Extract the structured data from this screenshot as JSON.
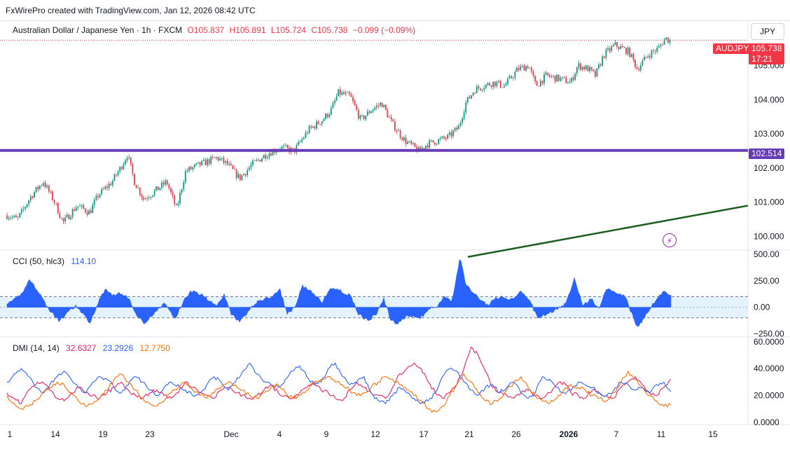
{
  "header": {
    "watermark": "FxWirePro created with TradingView.com, Jan 12, 2026 08:42 UTC"
  },
  "symbol": {
    "name": "Australian Dollar / Japanese Yen · 1h · FXCM",
    "open": "O105.837",
    "high": "H105.891",
    "low": "L105.724",
    "close": "C105.738",
    "change": "−0.099 (−0.09%)",
    "currency": "JPY",
    "ticker_tag": "AUDJPY",
    "last_price": "105.738",
    "countdown": "17:21",
    "level_tag": "102.514"
  },
  "colors": {
    "up": "#089981",
    "down": "#f23645",
    "hline": "#673ab7",
    "trendline": "#1b5e20",
    "cci": "#2962ff",
    "dmi_plus": "#e91e63",
    "dmi_minus": "#2962ff",
    "adx": "#ff6d00"
  },
  "icons": [
    "lightning-icon"
  ],
  "chart_data": [
    {
      "type": "candlestick",
      "title": "Australian Dollar / Japanese Yen · 1h · FXCM",
      "y_ticks": [
        "105.000",
        "104.000",
        "103.000",
        "102.000",
        "101.000",
        "100.000"
      ],
      "ylim": [
        99.6,
        106.3
      ],
      "x_tick_labels": [
        "1",
        "14",
        "19",
        "23",
        "Dec",
        "4",
        "9",
        "12",
        "17",
        "21",
        "26",
        "2026",
        "7",
        "11",
        "15"
      ],
      "path_anchors": [
        [
          0,
          100.7
        ],
        [
          25,
          100.5
        ],
        [
          45,
          101.2
        ],
        [
          62,
          101.6
        ],
        [
          78,
          101.0
        ],
        [
          90,
          100.4
        ],
        [
          110,
          100.9
        ],
        [
          128,
          100.7
        ],
        [
          140,
          101.2
        ],
        [
          160,
          101.6
        ],
        [
          172,
          102.0
        ],
        [
          182,
          102.4
        ],
        [
          192,
          101.6
        ],
        [
          205,
          101.1
        ],
        [
          220,
          101.3
        ],
        [
          238,
          101.6
        ],
        [
          252,
          100.8
        ],
        [
          265,
          101.9
        ],
        [
          285,
          102.1
        ],
        [
          310,
          102.3
        ],
        [
          325,
          102.1
        ],
        [
          342,
          101.7
        ],
        [
          360,
          102.1
        ],
        [
          380,
          102.4
        ],
        [
          400,
          102.6
        ],
        [
          420,
          102.5
        ],
        [
          440,
          103.1
        ],
        [
          460,
          103.4
        ],
        [
          473,
          103.7
        ],
        [
          483,
          104.2
        ],
        [
          500,
          104.1
        ],
        [
          515,
          103.4
        ],
        [
          530,
          103.7
        ],
        [
          545,
          103.9
        ],
        [
          560,
          103.3
        ],
        [
          578,
          102.8
        ],
        [
          598,
          102.5
        ],
        [
          610,
          102.7
        ],
        [
          625,
          102.8
        ],
        [
          640,
          102.9
        ],
        [
          655,
          103.2
        ],
        [
          665,
          103.9
        ],
        [
          678,
          104.3
        ],
        [
          690,
          104.4
        ],
        [
          705,
          104.5
        ],
        [
          720,
          104.4
        ],
        [
          740,
          104.9
        ],
        [
          755,
          105.0
        ],
        [
          765,
          104.4
        ],
        [
          780,
          104.7
        ],
        [
          800,
          104.6
        ],
        [
          815,
          104.5
        ],
        [
          825,
          105.0
        ],
        [
          840,
          104.9
        ],
        [
          850,
          104.7
        ],
        [
          862,
          105.3
        ],
        [
          878,
          105.6
        ],
        [
          888,
          105.5
        ],
        [
          898,
          105.4
        ],
        [
          910,
          104.9
        ],
        [
          925,
          105.3
        ],
        [
          940,
          105.5
        ],
        [
          950,
          105.8
        ],
        [
          958,
          105.7
        ]
      ],
      "horizontal_line": 102.514,
      "last_price": 105.738,
      "trendline": {
        "from": [
          668,
          99.4
        ],
        "to": [
          1068,
          100.9
        ]
      }
    },
    {
      "type": "area",
      "title": "CCI (50, hlc3)",
      "value": "114.10",
      "y_ticks": [
        "500.00",
        "250.00",
        "0.00",
        "−250.00"
      ],
      "ylim": [
        -260,
        520
      ],
      "band": [
        -100,
        100
      ],
      "path_anchors": [
        [
          0,
          50
        ],
        [
          15,
          40
        ],
        [
          30,
          120
        ],
        [
          42,
          260
        ],
        [
          55,
          150
        ],
        [
          65,
          30
        ],
        [
          72,
          -40
        ],
        [
          85,
          -130
        ],
        [
          95,
          -60
        ],
        [
          108,
          10
        ],
        [
          118,
          -60
        ],
        [
          128,
          -150
        ],
        [
          140,
          40
        ],
        [
          150,
          170
        ],
        [
          160,
          120
        ],
        [
          172,
          130
        ],
        [
          183,
          90
        ],
        [
          192,
          -40
        ],
        [
          205,
          -150
        ],
        [
          220,
          -60
        ],
        [
          235,
          40
        ],
        [
          250,
          -110
        ],
        [
          262,
          60
        ],
        [
          272,
          150
        ],
        [
          290,
          120
        ],
        [
          300,
          50
        ],
        [
          310,
          30
        ],
        [
          320,
          120
        ],
        [
          330,
          -60
        ],
        [
          342,
          -140
        ],
        [
          355,
          -40
        ],
        [
          368,
          60
        ],
        [
          385,
          90
        ],
        [
          400,
          160
        ],
        [
          410,
          -60
        ],
        [
          420,
          -10
        ],
        [
          432,
          200
        ],
        [
          445,
          140
        ],
        [
          460,
          50
        ],
        [
          472,
          180
        ],
        [
          485,
          160
        ],
        [
          500,
          110
        ],
        [
          512,
          -60
        ],
        [
          525,
          -130
        ],
        [
          538,
          -60
        ],
        [
          548,
          80
        ],
        [
          558,
          -120
        ],
        [
          568,
          -160
        ],
        [
          580,
          -80
        ],
        [
          600,
          -100
        ],
        [
          615,
          -10
        ],
        [
          625,
          10
        ],
        [
          635,
          110
        ],
        [
          645,
          40
        ],
        [
          657,
          470
        ],
        [
          665,
          220
        ],
        [
          680,
          110
        ],
        [
          698,
          10
        ],
        [
          705,
          80
        ],
        [
          718,
          100
        ],
        [
          730,
          70
        ],
        [
          745,
          150
        ],
        [
          758,
          40
        ],
        [
          768,
          -110
        ],
        [
          780,
          -60
        ],
        [
          795,
          -20
        ],
        [
          808,
          30
        ],
        [
          820,
          280
        ],
        [
          832,
          20
        ],
        [
          845,
          80
        ],
        [
          855,
          -20
        ],
        [
          865,
          170
        ],
        [
          878,
          150
        ],
        [
          892,
          110
        ],
        [
          902,
          -60
        ],
        [
          910,
          -190
        ],
        [
          922,
          -80
        ],
        [
          935,
          60
        ],
        [
          948,
          150
        ],
        [
          958,
          114
        ]
      ]
    },
    {
      "type": "line",
      "title": "DMI (14, 14)",
      "y_ticks": [
        "60.0000",
        "40.0000",
        "20.0000",
        "0.0000"
      ],
      "ylim": [
        0,
        62
      ],
      "series": [
        {
          "name": "32.6327",
          "values": [
            22,
            18,
            14,
            24,
            28,
            30,
            24,
            18,
            16,
            22,
            26,
            22,
            20,
            18,
            22,
            26,
            30,
            24,
            20,
            18,
            22,
            24,
            20,
            18,
            22,
            30,
            26,
            22,
            20,
            18,
            24,
            26,
            22,
            20,
            18,
            20,
            24,
            28,
            22,
            20,
            18,
            22,
            26,
            30,
            24,
            22,
            18,
            16,
            24,
            30,
            26,
            22,
            20,
            18,
            26,
            36,
            40,
            44,
            40,
            30,
            22,
            18,
            22,
            28,
            40,
            56,
            50,
            38,
            26,
            22,
            20,
            18,
            22,
            24,
            20,
            18,
            22,
            28,
            30,
            22,
            20,
            18,
            24,
            22,
            20,
            18,
            26,
            30,
            34,
            28,
            22,
            20,
            26,
            32
          ]
        },
        {
          "name": "23.2926",
          "values": [
            30,
            36,
            40,
            34,
            26,
            22,
            28,
            34,
            38,
            32,
            26,
            22,
            30,
            34,
            32,
            26,
            22,
            28,
            34,
            30,
            24,
            20,
            26,
            30,
            28,
            24,
            20,
            22,
            28,
            34,
            30,
            24,
            30,
            38,
            44,
            36,
            30,
            28,
            26,
            32,
            38,
            42,
            34,
            28,
            30,
            40,
            44,
            34,
            28,
            30,
            34,
            22,
            16,
            14,
            20,
            26,
            22,
            18,
            14,
            16,
            22,
            34,
            40,
            38,
            30,
            24,
            20,
            26,
            28,
            22,
            26,
            30,
            22,
            18,
            22,
            34,
            32,
            26,
            22,
            24,
            30,
            28,
            26,
            22,
            20,
            24,
            30,
            28,
            24,
            26,
            22,
            28,
            30,
            23
          ]
        },
        {
          "name": "12.7750",
          "values": [
            20,
            14,
            10,
            12,
            16,
            22,
            26,
            30,
            28,
            22,
            16,
            12,
            14,
            18,
            24,
            32,
            36,
            30,
            24,
            18,
            14,
            12,
            16,
            22,
            26,
            30,
            24,
            20,
            18,
            22,
            26,
            30,
            28,
            24,
            20,
            18,
            22,
            26,
            28,
            22,
            18,
            20,
            24,
            30,
            32,
            34,
            30,
            28,
            24,
            20,
            22,
            26,
            30,
            34,
            32,
            28,
            24,
            20,
            16,
            10,
            8,
            12,
            20,
            28,
            36,
            30,
            22,
            16,
            14,
            18,
            24,
            30,
            34,
            26,
            20,
            16,
            14,
            18,
            24,
            28,
            26,
            24,
            20,
            18,
            16,
            22,
            30,
            38,
            32,
            26,
            20,
            16,
            12,
            13
          ]
        }
      ]
    }
  ]
}
